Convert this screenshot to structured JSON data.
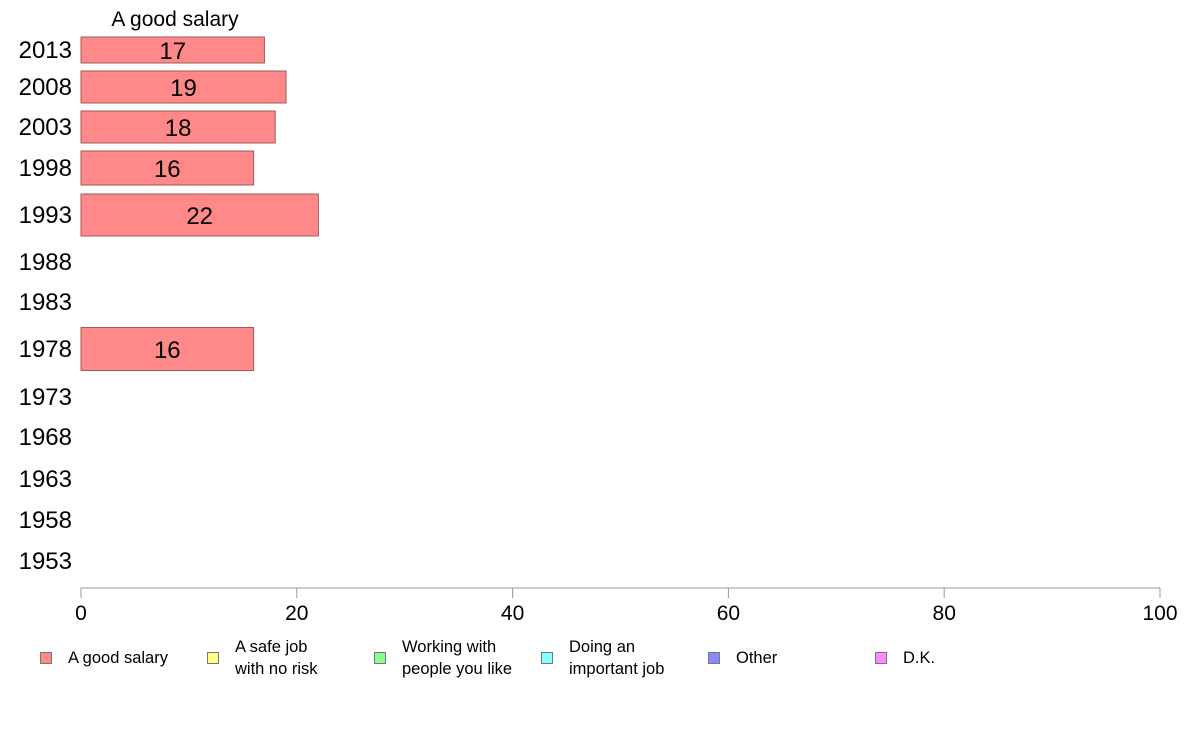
{
  "chart_data": {
    "type": "bar",
    "orientation": "horizontal",
    "title": "A good salary",
    "categories": [
      "2013",
      "2008",
      "2003",
      "1998",
      "1993",
      "1988",
      "1983",
      "1978",
      "1973",
      "1968",
      "1963",
      "1958",
      "1953"
    ],
    "series": [
      {
        "name": "A good salary",
        "values": [
          17,
          19,
          18,
          16,
          22,
          null,
          null,
          16,
          null,
          null,
          null,
          null,
          null
        ]
      }
    ],
    "data_labels": [
      "17",
      "19",
      "18",
      "16",
      "22",
      "",
      "",
      "16",
      "",
      "",
      "",
      "",
      ""
    ],
    "xlim": [
      0,
      100
    ],
    "xticks": [
      "0",
      "20",
      "40",
      "60",
      "80",
      "100"
    ],
    "xlabel": "",
    "ylabel": "",
    "grid": false,
    "legend_position": "bottom",
    "colors": {
      "bar_fill": "#ff8888",
      "bar_stroke": "#a05a5a",
      "axis": "#999999"
    }
  },
  "legend": [
    {
      "label": "A good salary",
      "color": "#ff8888"
    },
    {
      "label": "A safe job\nwith no risk",
      "color": "#ffff88"
    },
    {
      "label": "Working with\npeople you like",
      "color": "#88ff88"
    },
    {
      "label": "Doing an\nimportant job",
      "color": "#88ffff"
    },
    {
      "label": "Other",
      "color": "#8888ff"
    },
    {
      "label": "D.K.",
      "color": "#ff88ff"
    }
  ]
}
